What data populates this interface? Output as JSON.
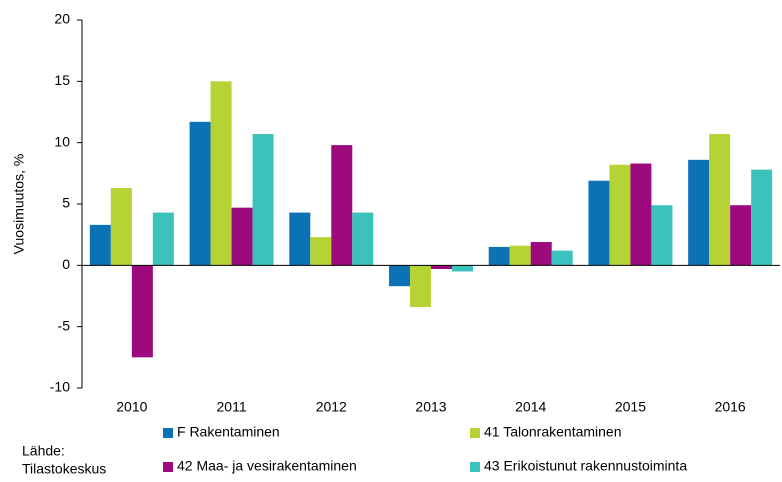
{
  "chart_data": {
    "type": "bar",
    "ylabel": "Vuosimuutos, %",
    "categories": [
      "2010",
      "2011",
      "2012",
      "2013",
      "2014",
      "2015",
      "2016"
    ],
    "series": [
      {
        "name": "F Rakentaminen",
        "color": "#0b72b5",
        "values": [
          3.3,
          11.7,
          4.3,
          -1.7,
          1.5,
          6.9,
          8.6
        ]
      },
      {
        "name": "41 Talonrakentaminen",
        "color": "#b5d334",
        "values": [
          6.3,
          15.0,
          2.3,
          -3.4,
          1.6,
          8.2,
          10.7
        ]
      },
      {
        "name": "42 Maa- ja vesirakentaminen",
        "color": "#9c0a7d",
        "values": [
          -7.5,
          4.7,
          9.8,
          -0.3,
          1.9,
          8.3,
          4.9
        ]
      },
      {
        "name": "43 Erikoistunut rakennustoiminta",
        "color": "#3cc2bc",
        "values": [
          4.3,
          10.7,
          4.3,
          -0.5,
          1.2,
          4.9,
          7.8
        ]
      }
    ],
    "ylim": [
      -10,
      20
    ],
    "yticks": [
      -10,
      -5,
      0,
      5,
      10,
      15,
      20
    ],
    "grid": false,
    "legend": "bottom",
    "source": [
      "Lähde:",
      "Tilastokeskus"
    ]
  }
}
